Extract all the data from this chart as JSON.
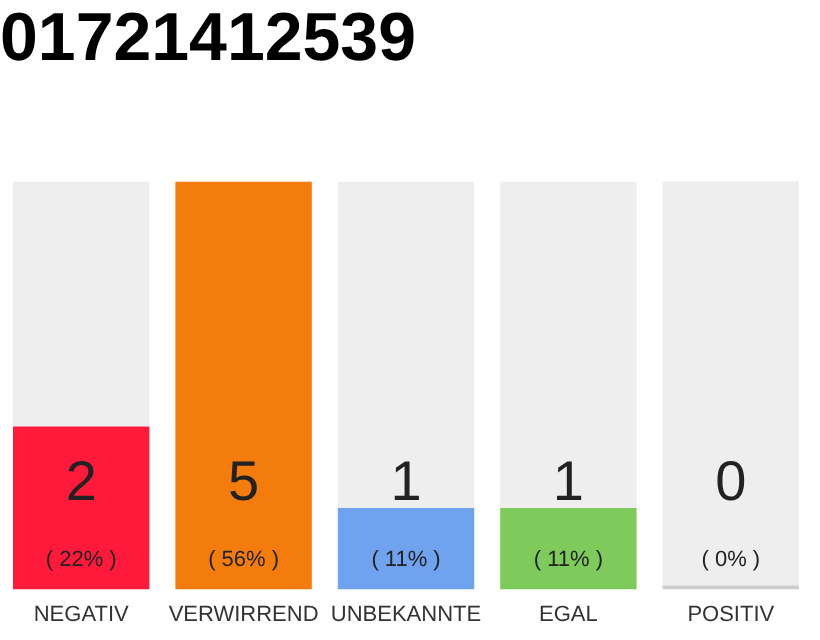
{
  "chart_data": {
    "type": "bar",
    "title": "01721412539",
    "categories": [
      "NEGATIV",
      "VERWIRREND",
      "UNBEKANNTE",
      "EGAL",
      "POSITIV"
    ],
    "stacked": true,
    "series": [
      {
        "values": [
          2,
          5,
          1,
          1,
          0
        ],
        "colors": [
          "#ff1a3c",
          "#f47c0c",
          "#6fa3ef",
          "#7ecb5b",
          "#cccccc"
        ],
        "value_labels": [
          "2\n( 22% )",
          "5\n( 56% )",
          "1\n( 11% )",
          "1\n( 11% )",
          "0\n( 0% )"
        ]
      },
      {
        "values": [
          3,
          0,
          4,
          4,
          5
        ],
        "color": "#eeeeee"
      }
    ],
    "ylim": [
      0,
      5
    ],
    "tick_labels": "x",
    "grid": false,
    "legend": false
  }
}
